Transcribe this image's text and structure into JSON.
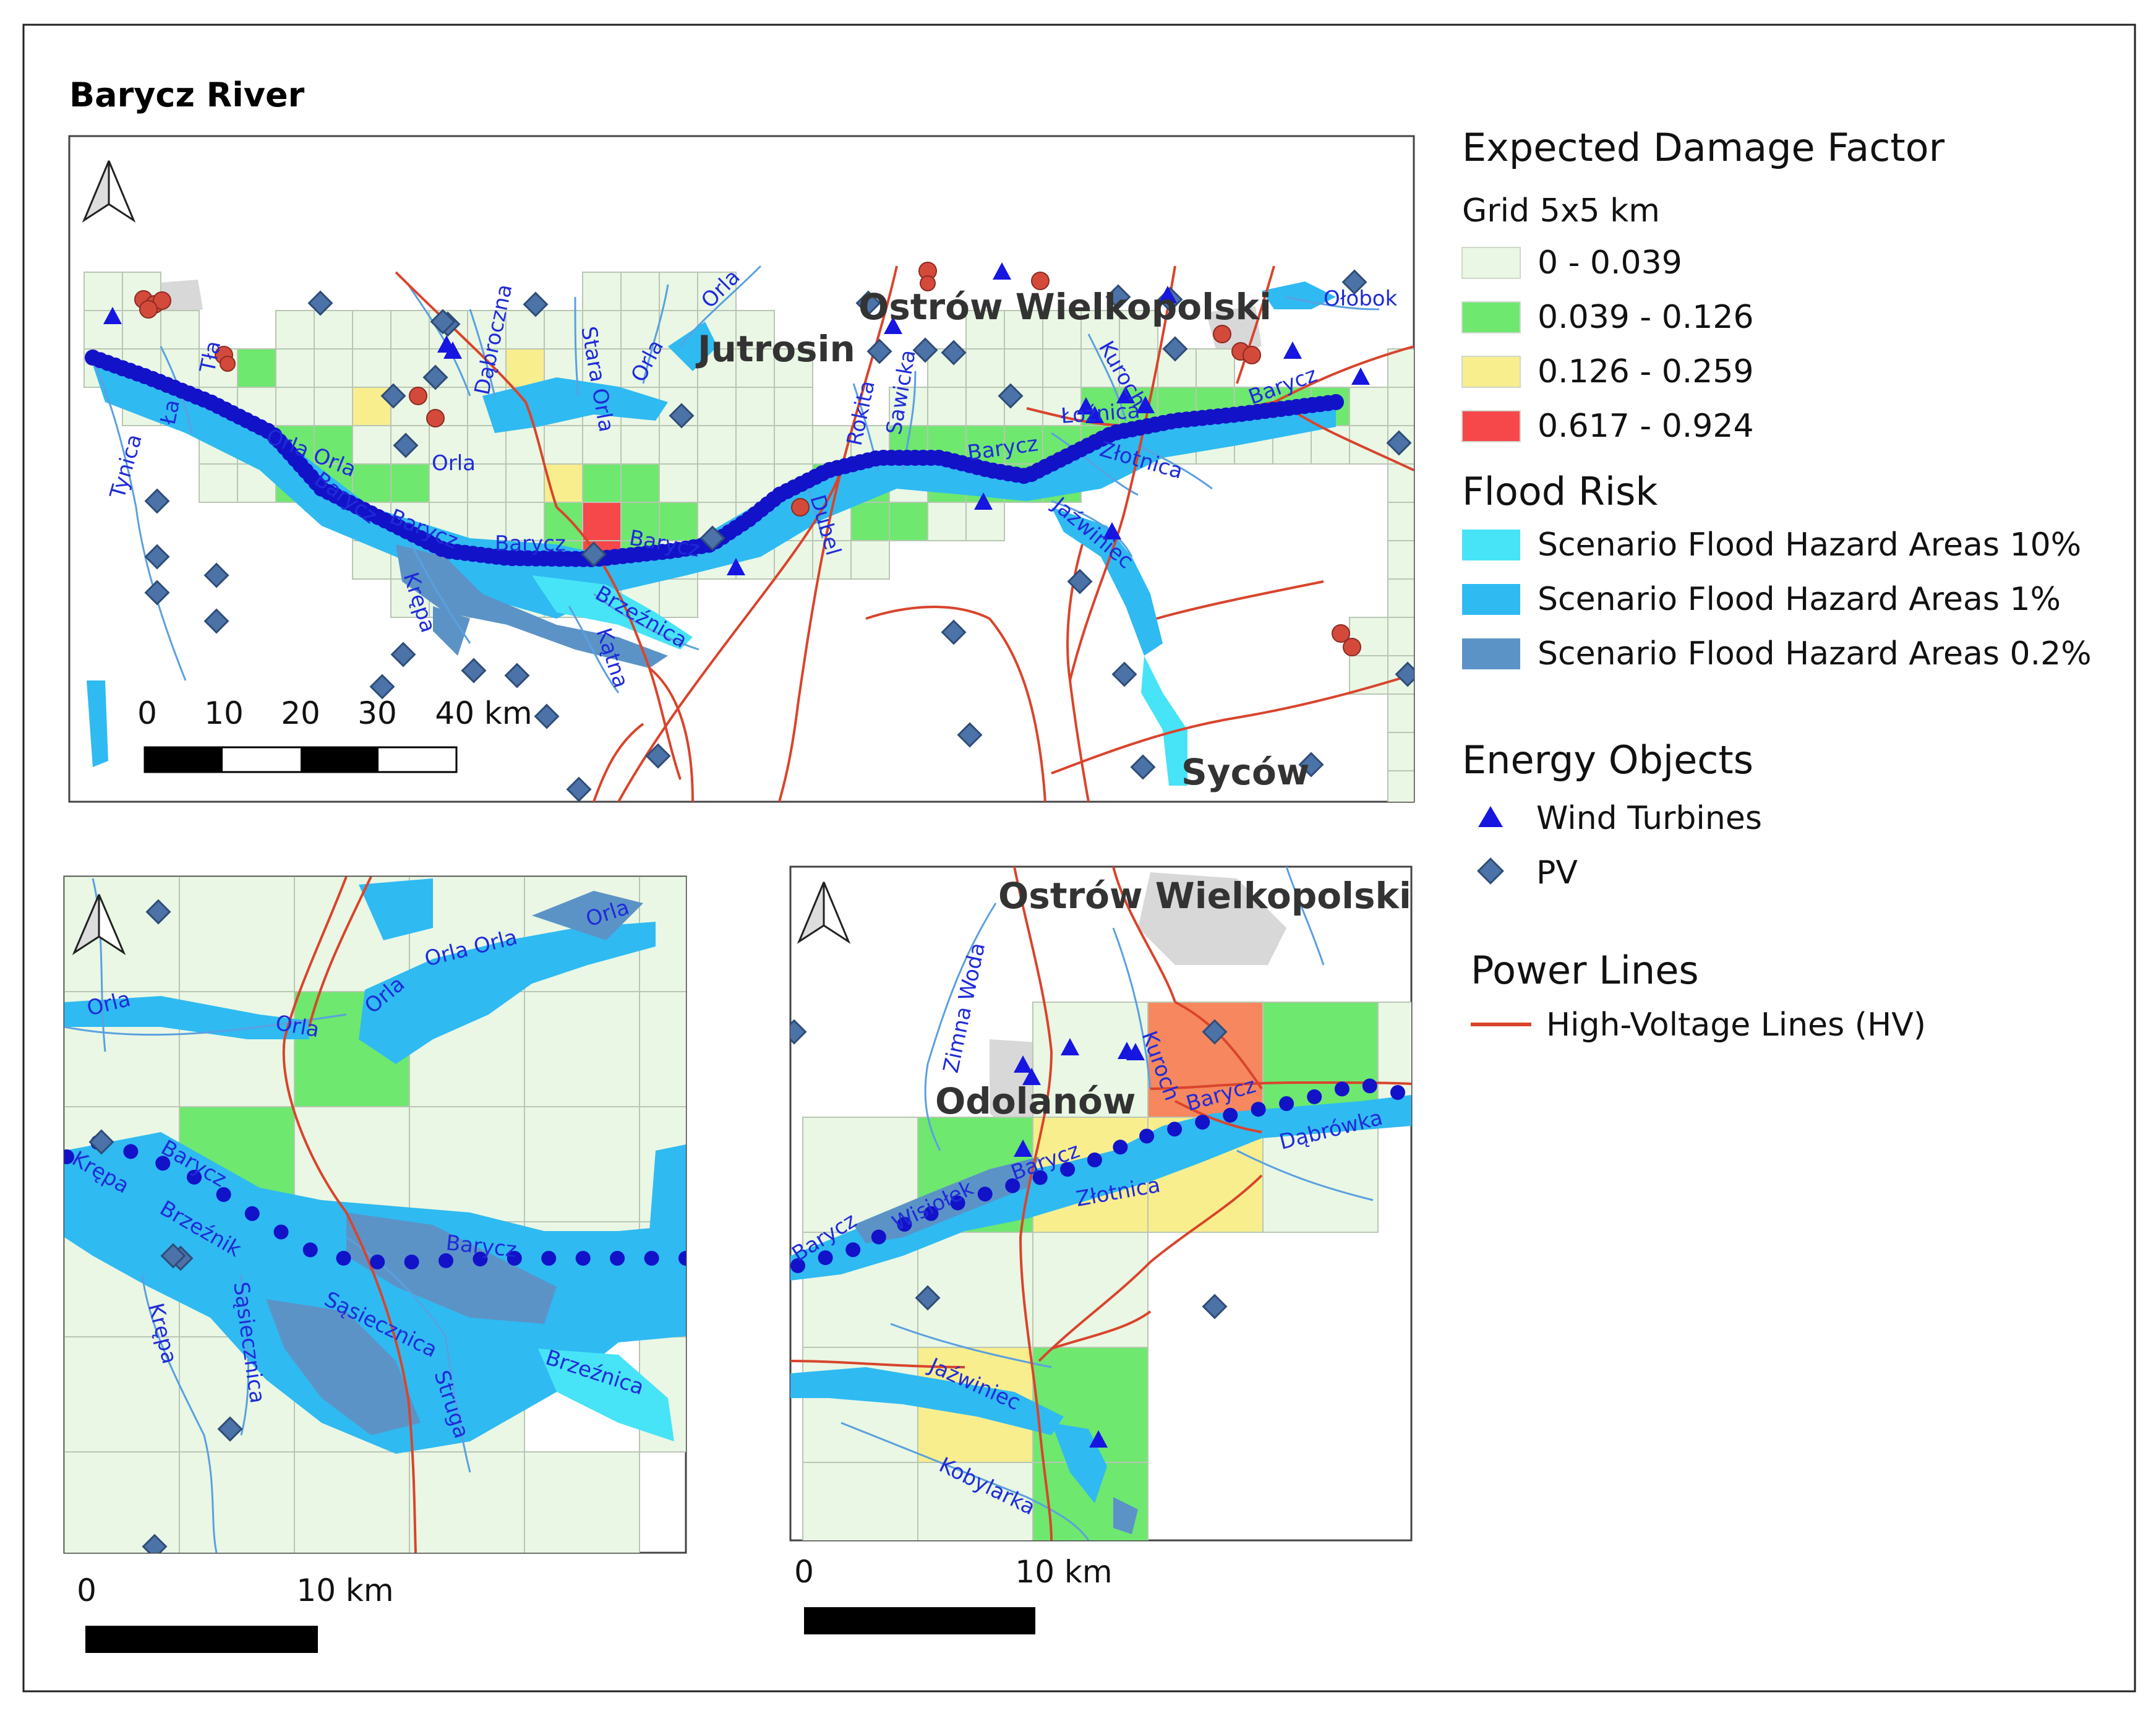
{
  "title": "Barycz River",
  "colors": {
    "grid_low": "#e9f7e4",
    "grid_mid": "#6ee86f",
    "grid_high": "#f8ee8e",
    "grid_top": "#f6474b",
    "grid_orange": "#f6875e",
    "flood_10": "#47e3f7",
    "flood_1": "#2fbaf2",
    "flood_02": "#5b93c7",
    "river_line": "#5aa0e0",
    "river_points": "#1212c9",
    "power_line": "#d9442c",
    "wind": "#1616e0",
    "pv": "#4c73a8",
    "settlement": "#d3d3d3"
  },
  "maps": {
    "main": {
      "places": [
        "Jutrosin",
        "Ostrów Wielkopolski",
        "Syców"
      ],
      "rivers": [
        "Orla",
        "Dąbroczna",
        "Stara Orla",
        "Orla",
        "Orla Orla",
        "Barycz",
        "Barycz",
        "Barycz",
        "Barycz",
        "Barycz",
        "Orla",
        "Krępa",
        "Brzeźnica",
        "Kątna",
        "Tynica",
        "Łoźnica",
        "Rokita",
        "Sawicka",
        "Dubel",
        "Kuroch",
        "Złotnica",
        "Jaźwiniec",
        "Barycz",
        "Ołobok",
        "Ła",
        "Tła"
      ],
      "scale": {
        "ticks": [
          "0",
          "10",
          "20",
          "30",
          "40 km"
        ]
      }
    },
    "inset_left": {
      "rivers": [
        "Orla",
        "Orla Orla",
        "Orla",
        "Orla",
        "Orla",
        "Krępa",
        "Barycz",
        "Brzeźnik",
        "Barycz",
        "Sąsiecznica",
        "Sąsiecznica",
        "Krępa",
        "Struga",
        "Brzeźnica"
      ],
      "scale": {
        "ticks": [
          "0",
          "10 km"
        ]
      }
    },
    "inset_right": {
      "places": [
        "Ostrów Wielkopolski",
        "Odolanów"
      ],
      "rivers": [
        "Zimna Woda",
        "Kuroch",
        "Barycz",
        "Dąbrówka",
        "Barycz",
        "Złotnica",
        "Wisiołek",
        "Barycz",
        "Jaźwiniec",
        "Kobylarka"
      ],
      "scale": {
        "ticks": [
          "0",
          "10 km"
        ]
      }
    }
  },
  "legend": {
    "damage": {
      "title": "Expected Damage Factor",
      "subtitle": "Grid 5x5 km",
      "classes": [
        {
          "label": "0 - 0.039",
          "color": "#e9f7e4"
        },
        {
          "label": "0.039 - 0.126",
          "color": "#6ee86f"
        },
        {
          "label": "0.126 - 0.259",
          "color": "#f8ee8e"
        },
        {
          "label": "0.617 - 0.924",
          "color": "#f6474b"
        }
      ]
    },
    "flood": {
      "title": "Flood Risk",
      "classes": [
        {
          "label": "Scenario Flood Hazard Areas 10%",
          "color": "#47e3f7"
        },
        {
          "label": "Scenario Flood Hazard Areas 1%",
          "color": "#2fbaf2"
        },
        {
          "label": "Scenario Flood Hazard Areas 0.2%",
          "color": "#5b93c7"
        }
      ]
    },
    "energy": {
      "title": "Energy Objects",
      "items": [
        {
          "label": "Wind Turbines",
          "icon": "triangle-icon"
        },
        {
          "label": "PV",
          "icon": "diamond-icon"
        }
      ]
    },
    "power": {
      "title": "Power Lines",
      "items": [
        {
          "label": "High-Voltage Lines (HV)",
          "icon": "line-icon"
        }
      ]
    }
  }
}
